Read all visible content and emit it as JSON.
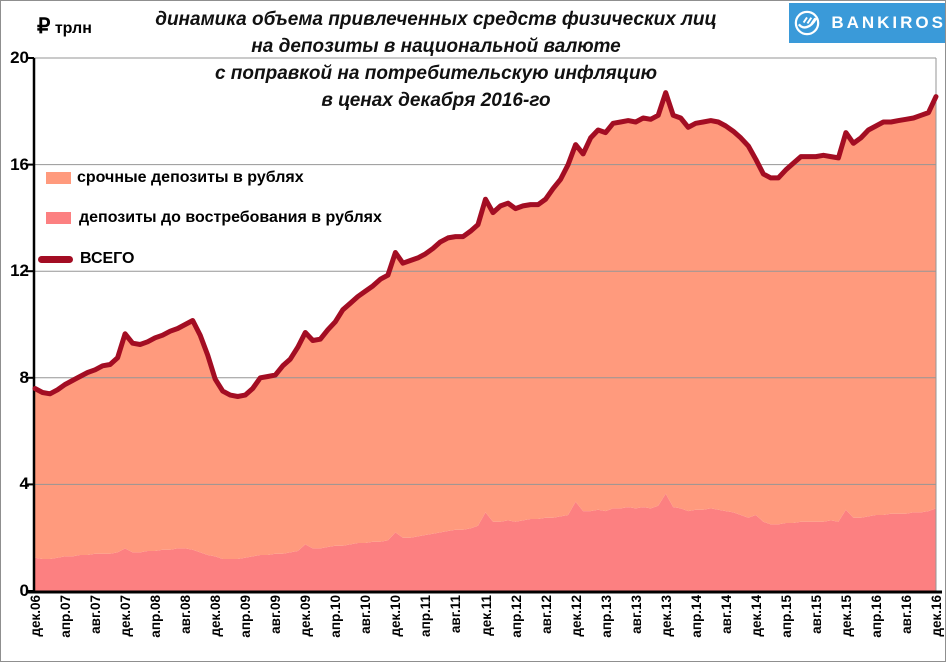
{
  "header": {
    "title_lines": [
      "динамика объема привлеченных  средств физических лиц",
      "на депозиты  в национальной валюте",
      "с поправкой на потребительскую инфляцию",
      "в ценах декабря 2016-го"
    ],
    "unit_currency": "₽",
    "unit_text": "трлн",
    "logo_text": "BANKIROS",
    "logo_bg_color": "#3A9AD9"
  },
  "legend": [
    {
      "label": "срочные депозиты в рублях",
      "swatch": "area",
      "color": "#FF9A7D"
    },
    {
      "label": "депозиты до востребования в рублях",
      "swatch": "area",
      "color": "#FC8081"
    },
    {
      "label": "ВСЕГО",
      "swatch": "line",
      "color": "#A30D23"
    }
  ],
  "chart_data": {
    "type": "area",
    "title": "динамика объема привлеченных средств физических лиц на депозиты в национальной валюте с поправкой на потребительскую инфляцию в ценах декабря 2016-го",
    "ylabel": "₽ трлн",
    "ylim": [
      0,
      20
    ],
    "y_ticks": [
      0,
      4,
      8,
      12,
      16,
      20
    ],
    "grid": "horizontal",
    "legend_position": "upper-left-inside",
    "x_interval": "monthly",
    "x_start": "дек.06",
    "x_end": "дек.16",
    "x_tick_labels": [
      "дек.06",
      "апр.07",
      "авг.07",
      "дек.07",
      "апр.08",
      "авг.08",
      "дек.08",
      "апр.09",
      "авг.09",
      "дек.09",
      "апр.10",
      "авг.10",
      "дек.10",
      "апр.11",
      "авг.11",
      "дек.11",
      "апр.12",
      "авг.12",
      "дек.12",
      "апр.13",
      "авг.13",
      "дек.13",
      "апр.14",
      "авг.14",
      "дек.14",
      "апр.15",
      "авг.15",
      "дек.15",
      "апр.16",
      "авг.16",
      "дек.16"
    ],
    "series": [
      {
        "name": "депозиты до востребования в рублях",
        "type": "area-stacked",
        "color": "#FC8081",
        "values": [
          1.25,
          1.2,
          1.2,
          1.25,
          1.3,
          1.3,
          1.35,
          1.35,
          1.4,
          1.4,
          1.4,
          1.45,
          1.6,
          1.45,
          1.45,
          1.5,
          1.5,
          1.55,
          1.55,
          1.6,
          1.6,
          1.55,
          1.45,
          1.35,
          1.3,
          1.2,
          1.2,
          1.2,
          1.25,
          1.3,
          1.35,
          1.35,
          1.4,
          1.4,
          1.45,
          1.5,
          1.75,
          1.6,
          1.6,
          1.65,
          1.7,
          1.7,
          1.75,
          1.8,
          1.8,
          1.85,
          1.85,
          1.9,
          2.2,
          2.0,
          2.0,
          2.05,
          2.1,
          2.15,
          2.2,
          2.25,
          2.3,
          2.3,
          2.35,
          2.45,
          2.95,
          2.6,
          2.6,
          2.65,
          2.6,
          2.65,
          2.7,
          2.7,
          2.75,
          2.75,
          2.8,
          2.85,
          3.35,
          3.0,
          3.0,
          3.05,
          3.0,
          3.1,
          3.1,
          3.15,
          3.1,
          3.15,
          3.1,
          3.2,
          3.65,
          3.15,
          3.1,
          3.0,
          3.05,
          3.05,
          3.1,
          3.05,
          3.0,
          2.95,
          2.85,
          2.75,
          2.85,
          2.6,
          2.5,
          2.5,
          2.55,
          2.55,
          2.6,
          2.6,
          2.6,
          2.6,
          2.65,
          2.6,
          3.05,
          2.75,
          2.75,
          2.8,
          2.85,
          2.85,
          2.9,
          2.9,
          2.9,
          2.95,
          2.95,
          3.0,
          3.1
        ]
      },
      {
        "name": "срочные депозиты в рублях",
        "type": "area-stacked",
        "color": "#FF9A7D",
        "values": [
          6.35,
          6.25,
          6.2,
          6.3,
          6.45,
          6.6,
          6.7,
          6.85,
          6.9,
          7.05,
          7.1,
          7.3,
          8.05,
          7.85,
          7.8,
          7.85,
          8.0,
          8.05,
          8.2,
          8.25,
          8.4,
          8.6,
          8.15,
          7.5,
          6.65,
          6.3,
          6.15,
          6.1,
          6.1,
          6.3,
          6.65,
          6.7,
          6.7,
          7.05,
          7.25,
          7.65,
          7.95,
          7.8,
          7.85,
          8.15,
          8.4,
          8.85,
          9.05,
          9.25,
          9.45,
          9.6,
          9.85,
          9.95,
          10.5,
          10.3,
          10.4,
          10.45,
          10.55,
          10.7,
          10.9,
          11.0,
          11.0,
          11.0,
          11.15,
          11.3,
          11.75,
          11.6,
          11.85,
          11.9,
          11.75,
          11.8,
          11.8,
          11.8,
          11.95,
          12.35,
          12.65,
          13.15,
          13.4,
          13.4,
          14.0,
          14.25,
          14.2,
          14.45,
          14.5,
          14.5,
          14.5,
          14.6,
          14.6,
          14.65,
          15.05,
          14.7,
          14.65,
          14.4,
          14.5,
          14.55,
          14.55,
          14.55,
          14.45,
          14.3,
          14.15,
          13.95,
          13.35,
          13.05,
          13.0,
          13.0,
          13.25,
          13.5,
          13.7,
          13.7,
          13.7,
          13.75,
          13.65,
          13.65,
          14.15,
          14.05,
          14.25,
          14.5,
          14.6,
          14.75,
          14.7,
          14.75,
          14.8,
          14.8,
          14.9,
          14.95,
          15.45
        ]
      },
      {
        "name": "ВСЕГО",
        "type": "line",
        "color": "#A30D23",
        "values": [
          7.6,
          7.45,
          7.4,
          7.55,
          7.75,
          7.9,
          8.05,
          8.2,
          8.3,
          8.45,
          8.5,
          8.75,
          9.65,
          9.3,
          9.25,
          9.35,
          9.5,
          9.6,
          9.75,
          9.85,
          10.0,
          10.15,
          9.6,
          8.85,
          7.95,
          7.5,
          7.35,
          7.3,
          7.35,
          7.6,
          8.0,
          8.05,
          8.1,
          8.45,
          8.7,
          9.15,
          9.7,
          9.4,
          9.45,
          9.8,
          10.1,
          10.55,
          10.8,
          11.05,
          11.25,
          11.45,
          11.7,
          11.85,
          12.7,
          12.3,
          12.4,
          12.5,
          12.65,
          12.85,
          13.1,
          13.25,
          13.3,
          13.3,
          13.5,
          13.75,
          14.7,
          14.2,
          14.45,
          14.55,
          14.35,
          14.45,
          14.5,
          14.5,
          14.7,
          15.1,
          15.45,
          16.0,
          16.75,
          16.4,
          17.0,
          17.3,
          17.2,
          17.55,
          17.6,
          17.65,
          17.6,
          17.75,
          17.7,
          17.85,
          18.7,
          17.85,
          17.75,
          17.4,
          17.55,
          17.6,
          17.65,
          17.6,
          17.45,
          17.25,
          17.0,
          16.7,
          16.2,
          15.65,
          15.5,
          15.5,
          15.8,
          16.05,
          16.3,
          16.3,
          16.3,
          16.35,
          16.3,
          16.25,
          17.2,
          16.8,
          17.0,
          17.3,
          17.45,
          17.6,
          17.6,
          17.65,
          17.7,
          17.75,
          17.85,
          17.95,
          18.55
        ]
      }
    ]
  },
  "colors": {
    "grid": "#969696",
    "axis": "#000000",
    "plot_right_border": "#969696"
  }
}
